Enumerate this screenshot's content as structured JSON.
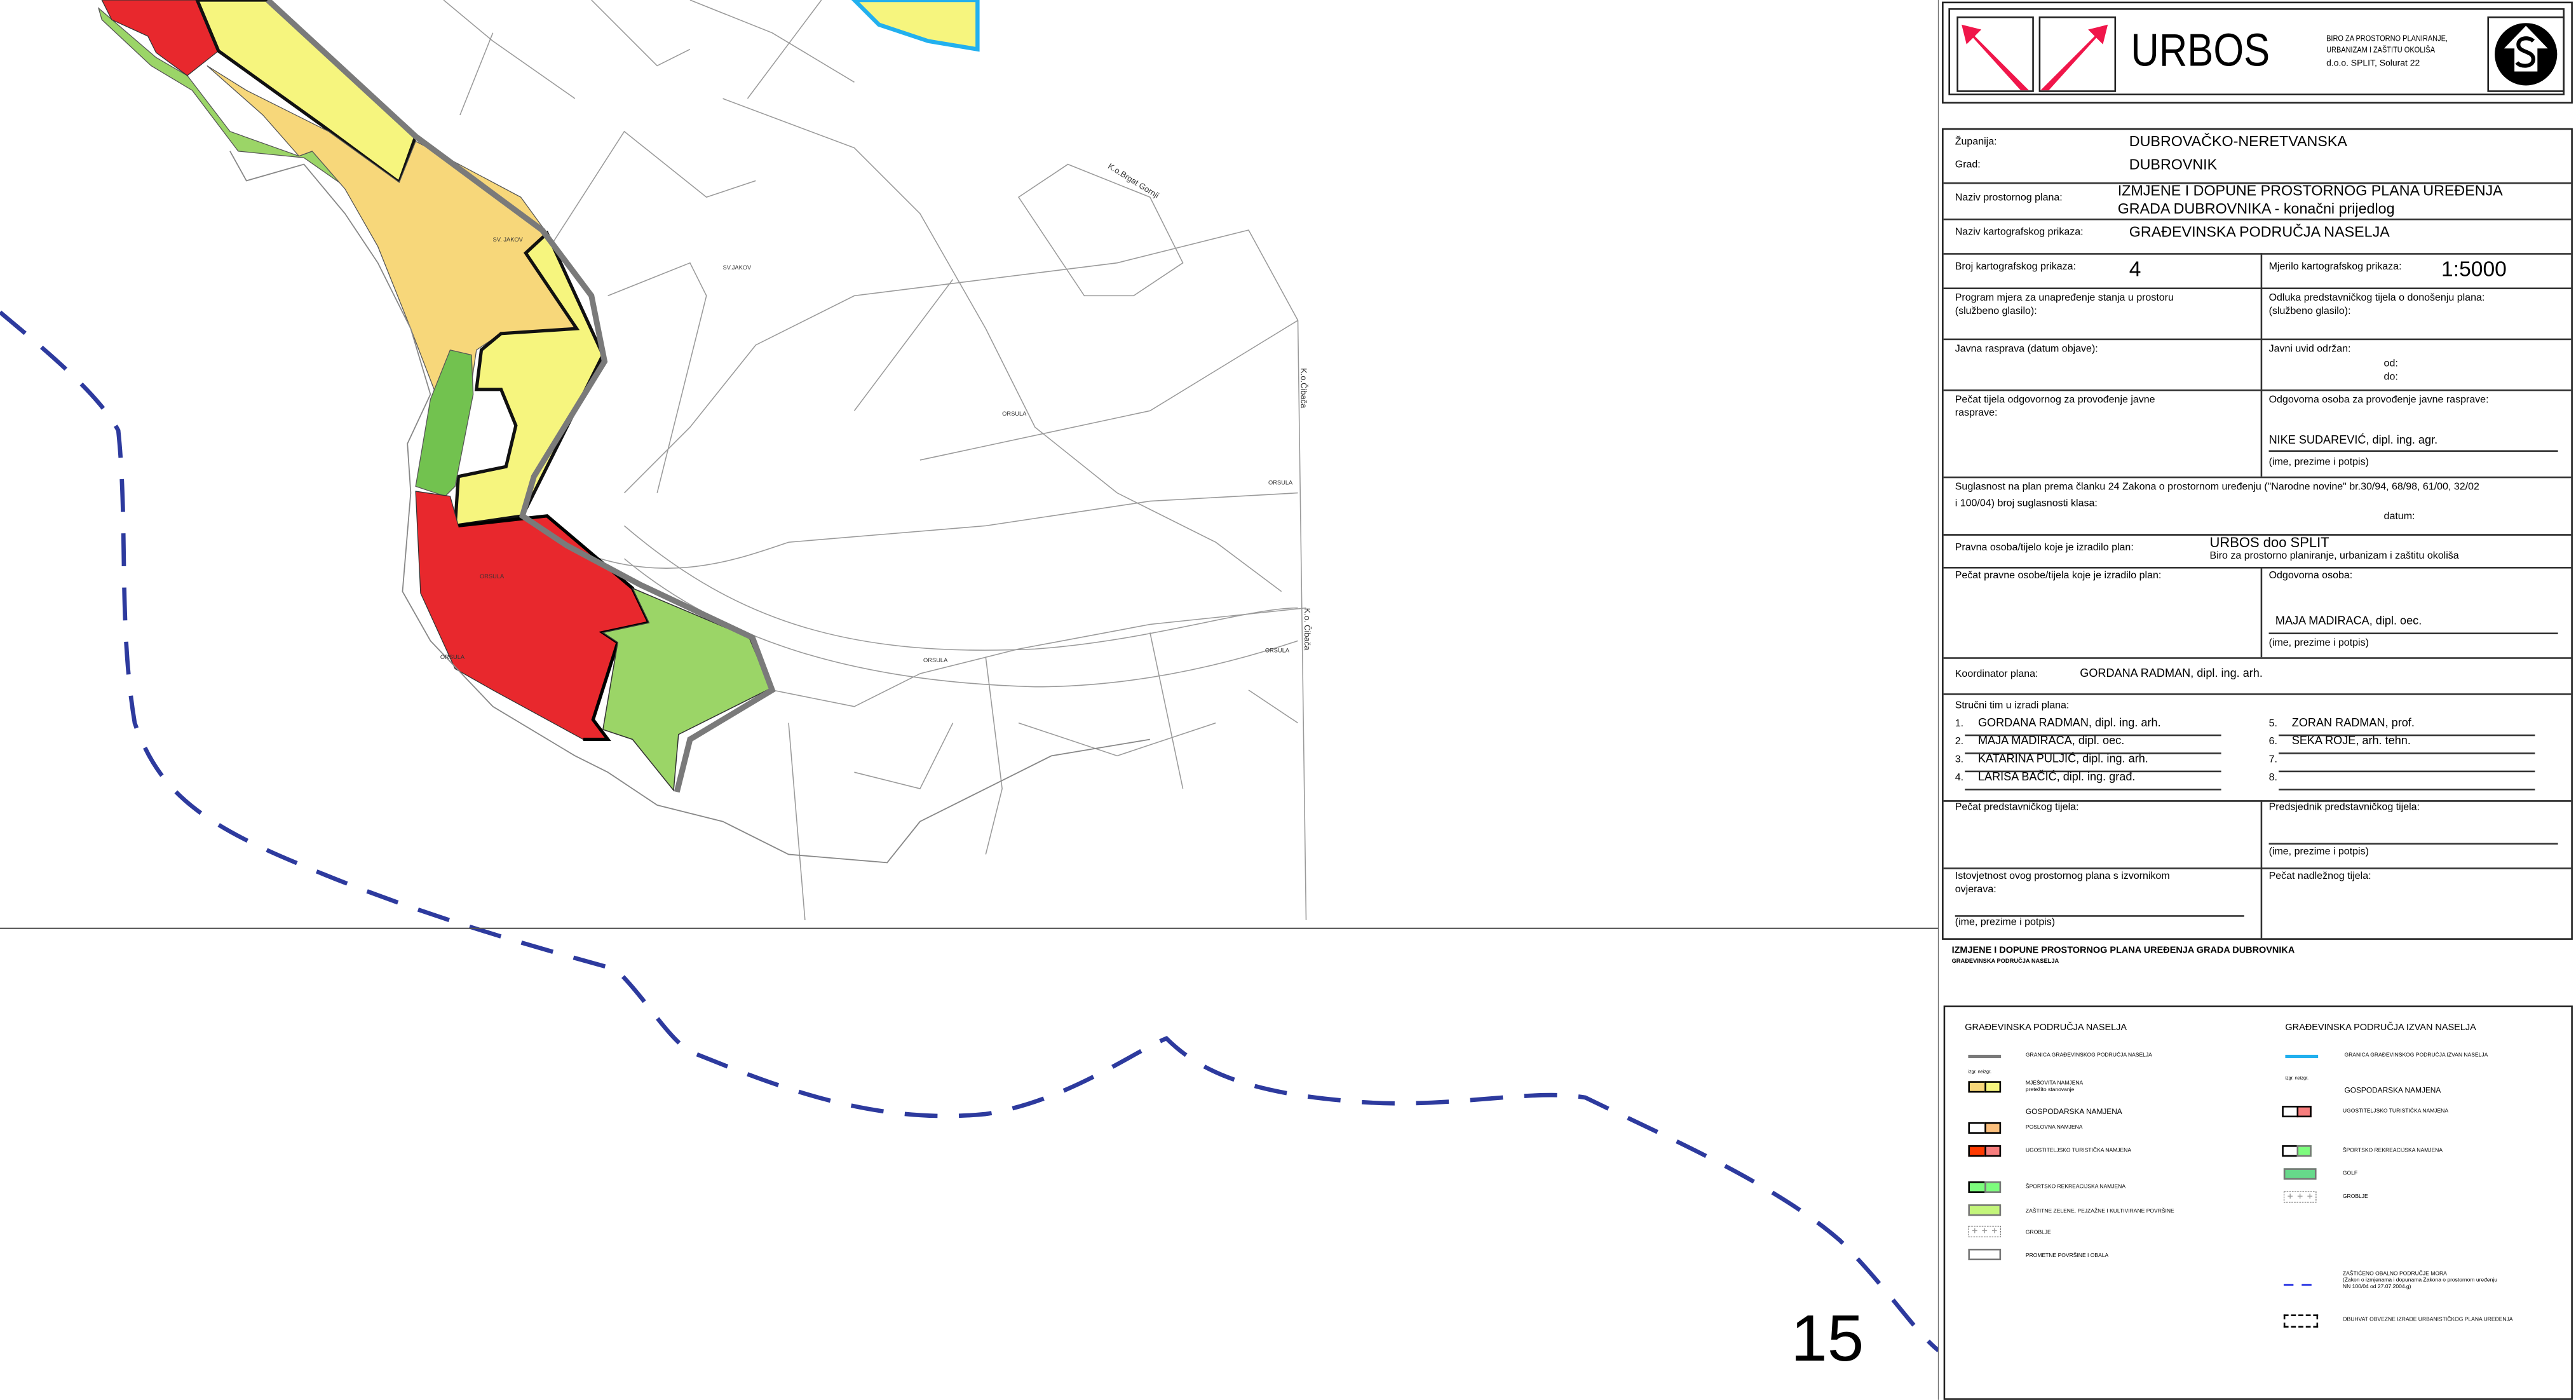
{
  "colors": {
    "mixed_built": "#f7d77a",
    "mixed_unbuilt": "#f6f57e",
    "business_unbuilt": "#fbbf7c",
    "tourism_built": "#e8282d",
    "tourism_unbuilt": "#f77d7d",
    "sport": "#7dfc7d",
    "green": "#c3f57a",
    "golf": "#66d98a",
    "coastal_zone": "#2d3a9e",
    "boundary_gray": "#7a7a7a",
    "boundary_blue": "#22b0ee"
  },
  "map": {
    "sheet_number": "15",
    "labels": [
      {
        "text": "SV. JAKOV"
      },
      {
        "text": "SV.JAKOV"
      },
      {
        "text": "ORSULA"
      },
      {
        "text": "ORSULA"
      },
      {
        "text": "ORSULA"
      },
      {
        "text": "ORSULA"
      },
      {
        "text": "ORSULA"
      },
      {
        "text": "ORSULA"
      },
      {
        "text": "K.o.Brgat Gornji"
      },
      {
        "text": "K.o.Čibača"
      },
      {
        "text": "K.o. Čibača"
      }
    ]
  },
  "header": {
    "brand": "URBOS",
    "tagline1": "BIRO ZA PROSTORNO PLANIRANJE,",
    "tagline2": "URBANIZAM I ZAŠTITU OKOLIŠA",
    "address": "d.o.o. SPLIT, Solurat 22",
    "logo_icons": [
      "arrow-up-left-icon",
      "arrow-up-right-icon",
      "s-house-logo-icon"
    ]
  },
  "info": {
    "zupanija_label": "Županija:",
    "zupanija": "DUBROVAČKO-NERETVANSKA",
    "grad_label": "Grad:",
    "grad": "DUBROVNIK",
    "plan_label": "Naziv prostornog plana:",
    "plan_line1": "IZMJENE I DOPUNE PROSTORNOG PLANA UREĐENJA",
    "plan_line2": "GRADA DUBROVNIKA - konačni prijedlog",
    "map_name_label": "Naziv kartografskog prikaza:",
    "map_name": "GRAĐEVINSKA PODRUČJA NASELJA",
    "map_no_label": "Broj kartografskog prikaza:",
    "map_no": "4",
    "scale_label": "Mjerilo kartografskog prikaza:",
    "scale": "1:5000",
    "program_label1": "Program mjera za unapređenje stanja u prostoru",
    "program_label2": "(službeno glasilo):",
    "odluka_label1": "Odluka predstavničkog tijela o donošenju plana:",
    "odluka_label2": "(službeno glasilo):",
    "javna_label": "Javna rasprava (datum objave):",
    "uvid_label": "Javni uvid održan:",
    "od": "od:",
    "do": "do:",
    "pecat_label1": "Pečat tijela odgovornog za provođenje javne",
    "pecat_label2": "rasprave:",
    "odg_rasprava_label": "Odgovorna osoba za provođenje javne rasprave:",
    "odg_rasprava": "NIKE SUDAREVIĆ, dipl. ing. agr.",
    "ime_potpis": "(ime, prezime i potpis)",
    "suglasnost1": "Suglasnost na plan prema članku 24 Zakona o prostornom uređenju (\"Narodne novine\" br.30/94, 68/98, 61/00, 32/02",
    "suglasnost2": "i 100/04) broj suglasnosti klasa:",
    "datum": "datum:",
    "pravna_label": "Pravna osoba/tijelo koje je izradilo plan:",
    "pravna": "URBOS doo SPLIT",
    "pravna_sub": "Biro za prostorno planiranje, urbanizam i zaštitu okoliša",
    "pecat_pravne_label": "Pečat pravne osobe/tijela koje je izradilo plan:",
    "odg_osoba_label": "Odgovorna osoba:",
    "odg_osoba": "MAJA MADIRACA,  dipl. oec.",
    "koord_label": "Koordinator plana:",
    "koord": "GORDANA RADMAN,  dipl. ing. arh.",
    "tim_label": "Stručni tim u izradi plana:",
    "tim": [
      {
        "no": "1.",
        "name": "GORDANA RADMAN,  dipl. ing. arh."
      },
      {
        "no": "2.",
        "name": "MAJA MADIRACA,  dipl. oec."
      },
      {
        "no": "3.",
        "name": "KATARINA PULJIĆ,  dipl. ing. arh."
      },
      {
        "no": "4.",
        "name": "LARISA BAČIĆ,  dipl. ing. građ."
      },
      {
        "no": "5.",
        "name": "ZORAN RADMAN,  prof."
      },
      {
        "no": "6.",
        "name": "SEKA ROJE,  arh. tehn."
      },
      {
        "no": "7.",
        "name": ""
      },
      {
        "no": "8.",
        "name": ""
      }
    ],
    "pecat_predst_label": "Pečat predstavničkog tijela:",
    "predsjednik_label": "Predsjednik predstavničkog tijela:",
    "istovjetnost1": "Istovjetnost ovog prostornog plana s izvornikom",
    "istovjetnost2": "ovjerava:",
    "pecat_nadl_label": "Pečat nadležnog tijela:"
  },
  "legend_title": {
    "line1": "IZMJENE I DOPUNE PROSTORNOG PLANA UREĐENJA GRADA DUBROVNIKA",
    "line2": "GRAĐEVINSKA PODRUČJA NASELJA"
  },
  "legend": {
    "left_title": "GRAĐEVINSKA PODRUČJA NASELJA",
    "right_title": "GRAĐEVINSKA PODRUČJA IZVAN NASELJA",
    "izgr": "izgr.",
    "neizgr": "neizgr.",
    "left": {
      "granica": "GRANICA GRAĐEVINSKOG PODRUČJA NASELJA",
      "mjesovita": "MJEŠOVITA NAMJENA",
      "mjesovita_sub": "pretežito stanovanje",
      "gospodarska": "GOSPODARSKA NAMJENA",
      "poslovna": "POSLOVNA NAMJENA",
      "ugostiteljska": "UGOSTITELJSKO TURISTIČKA NAMJENA",
      "sportska": "ŠPORTSKO REKREACIJSKA NAMJENA",
      "zastitne": "ZAŠTITNE ZELENE, PEJZAŽNE I KULTIVIRANE POVRŠINE",
      "groblje": "GROBLJE",
      "prometne": "PROMETNE POVRŠINE I OBALA"
    },
    "right": {
      "granica": "GRANICA GRAĐEVINSKOG PODRUČJA IZVAN NASELJA",
      "gospodarska": "GOSPODARSKA NAMJENA",
      "ugostiteljska": "UGOSTITELJSKO TURISTIČKA NAMJENA",
      "sportska": "ŠPORTSKO REKREACIJSKA NAMJENA",
      "golf": "GOLF",
      "groblje": "GROBLJE",
      "obalno": "ZAŠTIĆENO OBALNO PODRUČJE MORA",
      "obalno_sub1": "(Zakon o izmjenama i dopunama Zakona o prostornom uređenju",
      "obalno_sub2": "NN 100/04 od 27.07.2004.g)",
      "obuhvat": "OBUHVAT OBVEZNE IZRADE URBANISTIČKOG PLANA UREĐENJA"
    }
  }
}
